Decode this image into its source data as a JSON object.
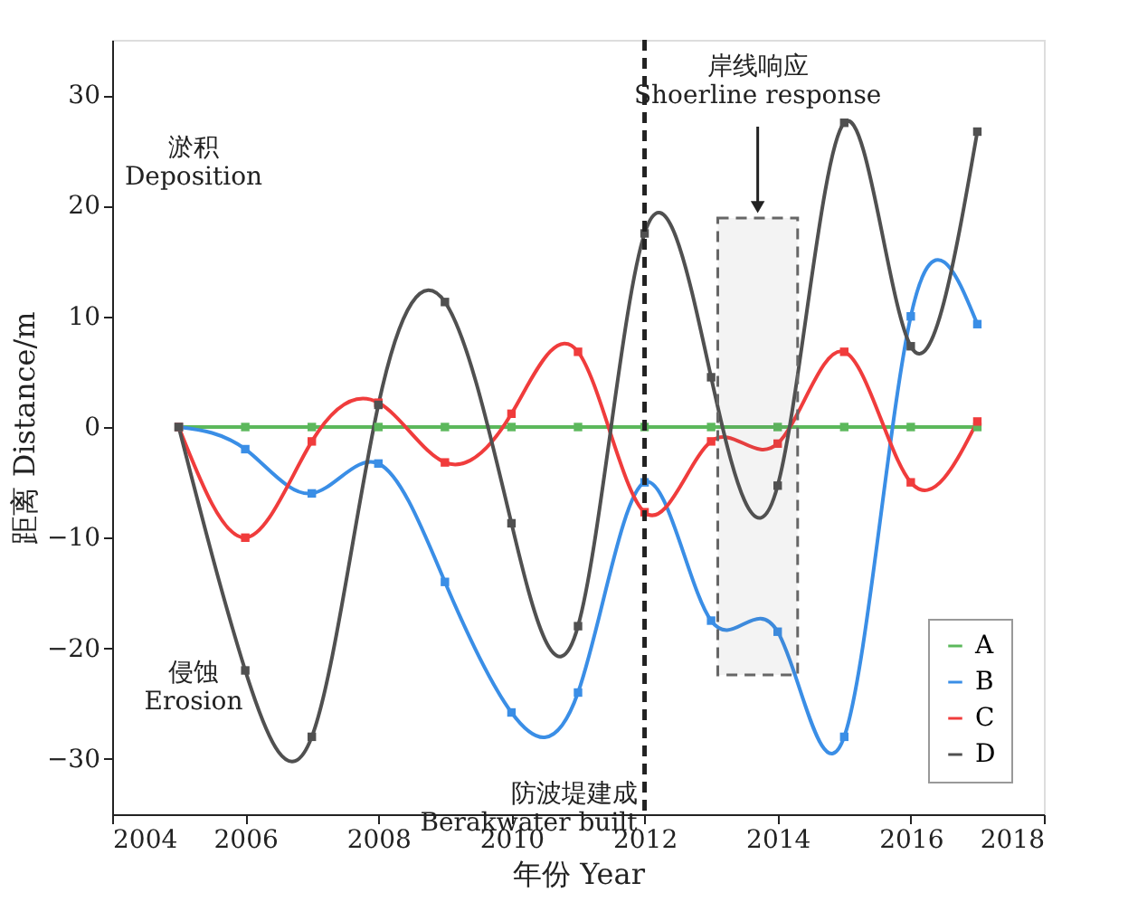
{
  "chart_data": {
    "type": "line",
    "xlabel": "年份 Year",
    "ylabel": "距离 Distance/m",
    "x": [
      2005,
      2006,
      2007,
      2008,
      2009,
      2010,
      2011,
      2012,
      2013,
      2014,
      2015,
      2016,
      2017
    ],
    "series": [
      {
        "name": "A",
        "color": "#5cb85c",
        "values": [
          0,
          0,
          0,
          0,
          0,
          0,
          0,
          0,
          0,
          0,
          0,
          0,
          0
        ]
      },
      {
        "name": "B",
        "color": "#3a8ee6",
        "values": [
          0,
          -2,
          -6,
          -3.3,
          -14,
          -25.8,
          -24,
          -5,
          -17.5,
          -18.5,
          -28,
          10,
          9.3
        ]
      },
      {
        "name": "C",
        "color": "#f03c3c",
        "values": [
          0,
          -10,
          -1.3,
          2.2,
          -3.2,
          1.2,
          6.8,
          -7.7,
          -1.3,
          -1.5,
          6.8,
          -5,
          0.5
        ]
      },
      {
        "name": "D",
        "color": "#505050",
        "values": [
          0,
          -22,
          -28,
          2,
          11.3,
          -8.7,
          -18,
          17.5,
          4.5,
          -5.3,
          27.5,
          7.3,
          26.7
        ]
      }
    ],
    "xlim": [
      2004,
      2018
    ],
    "xticks": [
      2004,
      2006,
      2008,
      2010,
      2012,
      2014,
      2016,
      2018
    ],
    "ylim": [
      -35,
      35
    ],
    "yticks": [
      -30,
      -20,
      -10,
      0,
      10,
      20,
      30
    ],
    "marker": "square",
    "grid": false,
    "legend": "bottom right",
    "ref_lines": [
      {
        "axis": "x",
        "value": 2012,
        "label": "防波堤建成\nBerakwater built",
        "color": "#222222",
        "line_style": "dashed"
      }
    ],
    "bands": [
      {
        "axis": "x",
        "from": 2013.1,
        "to": 2014.3,
        "label": "岸线响应\nShoerline response",
        "color": "#666666"
      }
    ],
    "annotations": [
      "淤积\nDeposition",
      "侵蚀\nErosion"
    ]
  }
}
